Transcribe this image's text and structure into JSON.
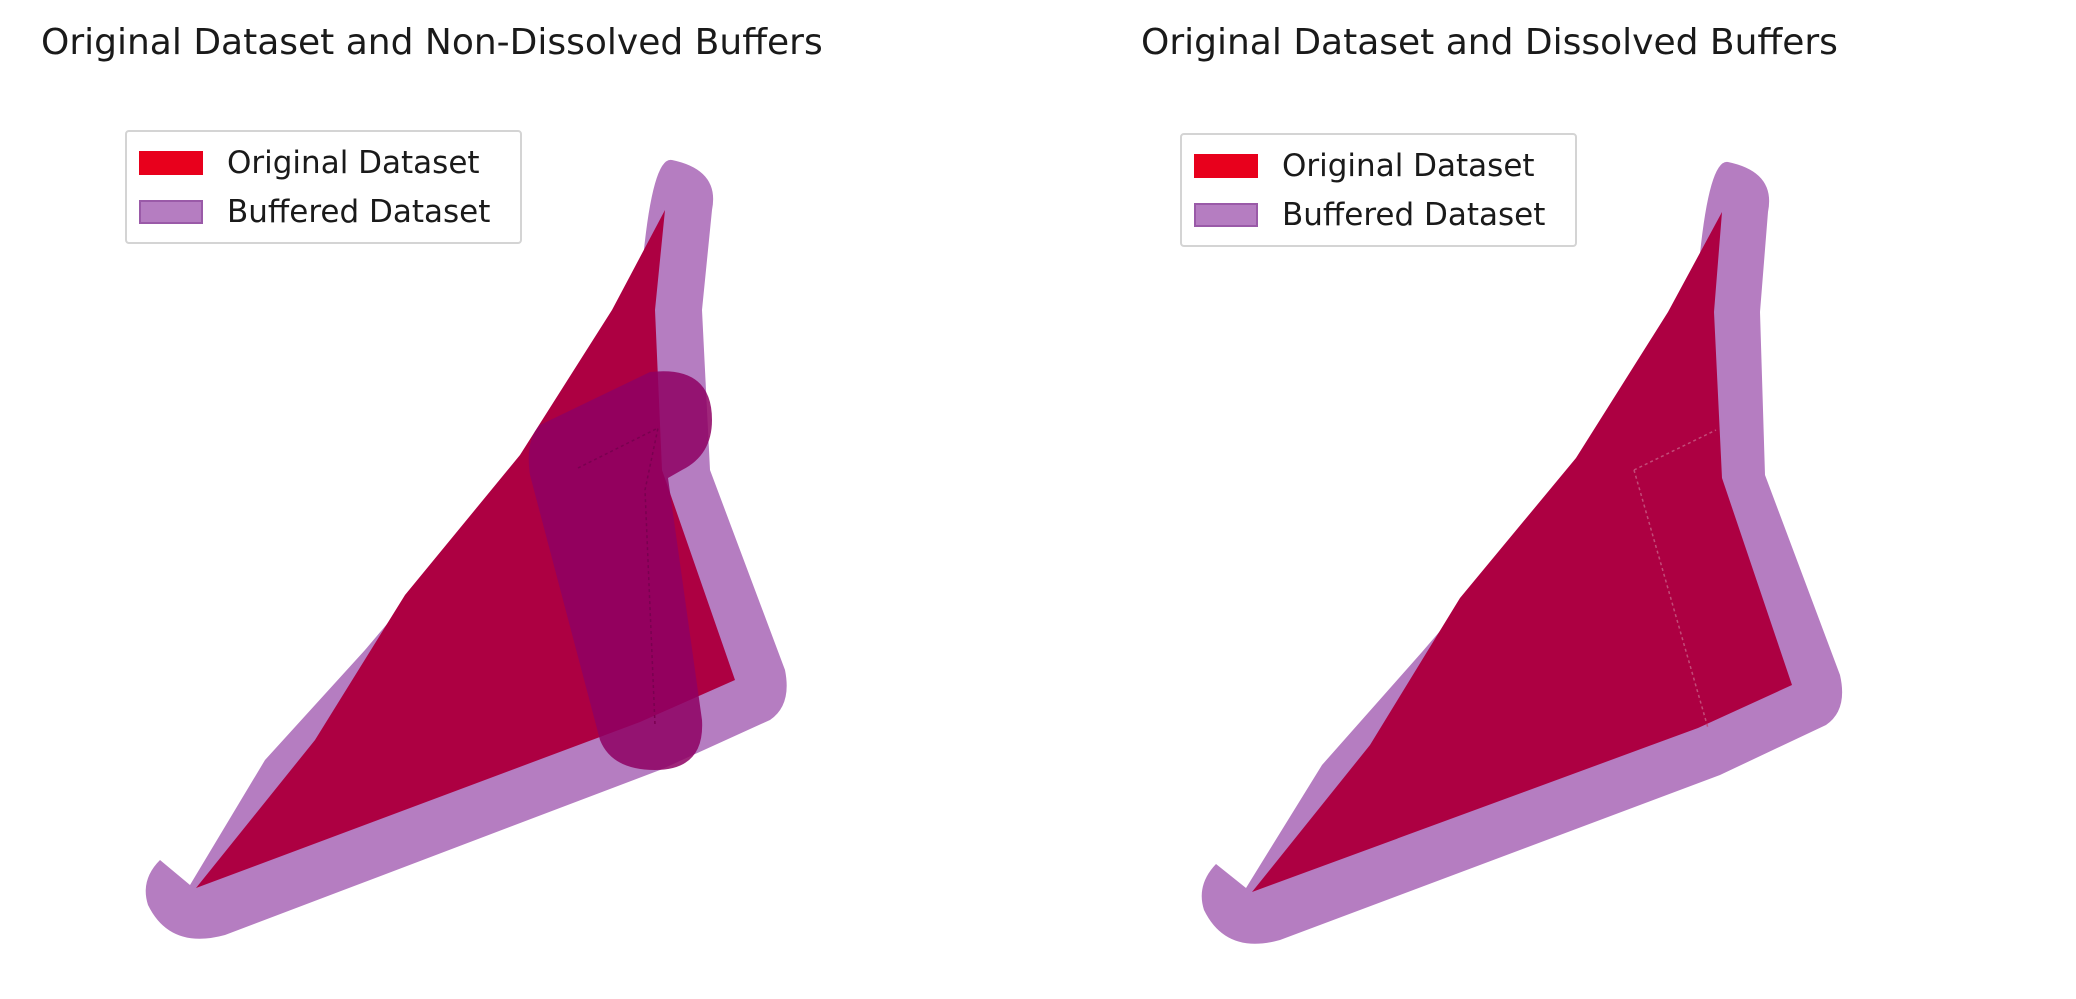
{
  "panels": [
    {
      "title": "Original Dataset and Non-Dissolved Buffers",
      "legend": {
        "items": [
          {
            "label": "Original Dataset",
            "color": "#e8001c"
          },
          {
            "label": "Buffered Dataset",
            "color": "#b57dc1"
          }
        ]
      },
      "dissolved": false
    },
    {
      "title": "Original Dataset and Dissolved Buffers",
      "legend": {
        "items": [
          {
            "label": "Original Dataset",
            "color": "#e8001c"
          },
          {
            "label": "Buffered Dataset",
            "color": "#b57dc1"
          }
        ]
      },
      "dissolved": true
    }
  ],
  "colors": {
    "original_fill": "#e8001c",
    "overlap_fill": "#ad0042",
    "buffer_fill": "#b57dc1",
    "buffer_overlap": "#8e0063"
  }
}
